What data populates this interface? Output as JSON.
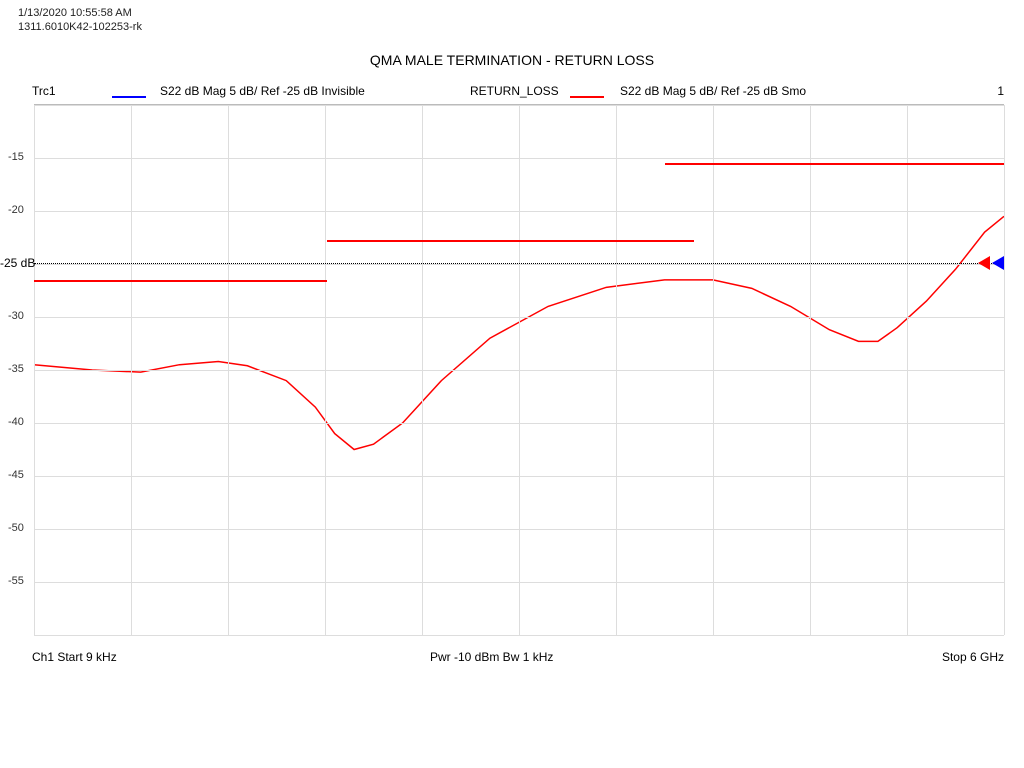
{
  "meta": {
    "timestamp": "1/13/2020 10:55:58 AM",
    "file_id": "1311.6010K42-102253-rk"
  },
  "title": "QMA MALE TERMINATION - RETURN LOSS",
  "legend": {
    "trc_label": "Trc1",
    "trace1": {
      "color": "#0000ff",
      "text": "S22  dB Mag  5 dB/ Ref -25 dB  Invisible"
    },
    "trace2_name": "RETURN_LOSS",
    "trace2": {
      "color": "#ff0000",
      "text": "S22  dB Mag  5 dB/ Ref -25 dB  Smo"
    },
    "right_label": "1"
  },
  "chart": {
    "type": "line",
    "ylim": [
      -60,
      -10
    ],
    "ytick_step": 5,
    "background_color": "#ffffff",
    "grid_color": "#dddddd",
    "ref_level": -25,
    "ref_label": "-25 dB",
    "x_divisions": 10,
    "trace_color": "#ff0000",
    "trace_width": 1.5,
    "trace_points": [
      [
        0.0,
        -34.5
      ],
      [
        0.06,
        -35.0
      ],
      [
        0.11,
        -35.2
      ],
      [
        0.15,
        -34.5
      ],
      [
        0.19,
        -34.2
      ],
      [
        0.22,
        -34.6
      ],
      [
        0.26,
        -36.0
      ],
      [
        0.29,
        -38.5
      ],
      [
        0.31,
        -41.0
      ],
      [
        0.33,
        -42.5
      ],
      [
        0.35,
        -42.0
      ],
      [
        0.38,
        -40.0
      ],
      [
        0.42,
        -36.0
      ],
      [
        0.47,
        -32.0
      ],
      [
        0.53,
        -29.0
      ],
      [
        0.59,
        -27.2
      ],
      [
        0.65,
        -26.5
      ],
      [
        0.7,
        -26.5
      ],
      [
        0.74,
        -27.3
      ],
      [
        0.78,
        -29.0
      ],
      [
        0.82,
        -31.2
      ],
      [
        0.85,
        -32.3
      ],
      [
        0.87,
        -32.3
      ],
      [
        0.89,
        -31.0
      ],
      [
        0.92,
        -28.5
      ],
      [
        0.95,
        -25.5
      ],
      [
        0.98,
        -22.0
      ],
      [
        1.0,
        -20.5
      ]
    ],
    "limit_segments": [
      {
        "x_from": 0.0,
        "x_to": 0.302,
        "y": -26.5,
        "color": "#ff0000"
      },
      {
        "x_from": 0.302,
        "x_to": 0.68,
        "y": -22.7,
        "color": "#ff0000"
      },
      {
        "x_from": 0.65,
        "x_to": 1.0,
        "y": -15.5,
        "color": "#ff0000"
      }
    ],
    "markers": [
      {
        "y": -25,
        "color": "#0000ff",
        "offset_x": 0
      },
      {
        "y": -25,
        "color": "#ff0000",
        "offset_x": 14
      }
    ]
  },
  "footer": {
    "left": "Ch1  Start  9 kHz",
    "center": "Pwr  -10 dBm  Bw  1 kHz",
    "right": "Stop  6 GHz"
  }
}
